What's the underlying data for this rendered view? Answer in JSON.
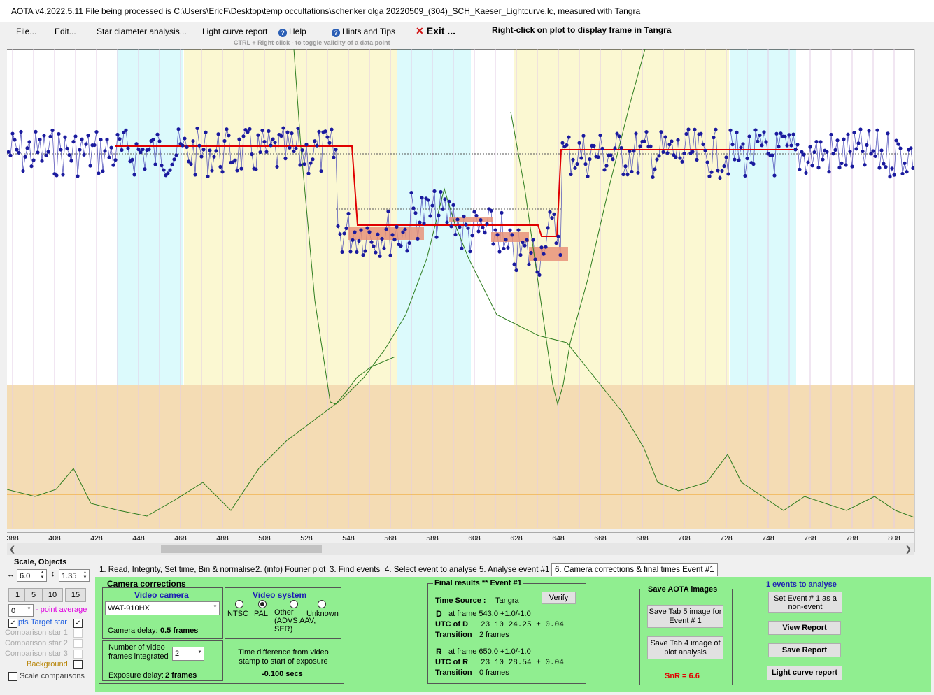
{
  "window": {
    "title": "AOTA v4.2022.5.11    File being processed is C:\\Users\\EricF\\Desktop\\temp occultations\\schenker olga 20220509_(304)_SCH_Kaeser_Lightcurve.lc, measured with Tangra"
  },
  "menu": {
    "file": "File...",
    "edit": "Edit...",
    "star_diameter": "Star diameter analysis...",
    "light_curve_report": "Light curve report",
    "help": "Help",
    "hints": "Hints and Tips",
    "exit": "Exit ...",
    "right_click_hint": "Right-click on plot to display frame in Tangra",
    "ctrl_hint": "CTRL + Right-click  -  to toggle validity of a data point"
  },
  "plot": {
    "x_ticks": [
      "388",
      "408",
      "428",
      "448",
      "468",
      "488",
      "508",
      "528",
      "548",
      "568",
      "588",
      "608",
      "628",
      "648",
      "668",
      "688",
      "708",
      "728",
      "748",
      "768",
      "788",
      "808"
    ],
    "colors": {
      "cyan_band": "#dcfafc",
      "yellow_band": "#fbf8d2",
      "noise_band": "#f4dcb4",
      "data": "#1a1a9e",
      "fit": "#e00000",
      "green_curve": "#2e7d1f"
    }
  },
  "chart_data": {
    "type": "line",
    "xlabel": "",
    "ylabel": "",
    "xlim": [
      386,
      818
    ],
    "x_tick_labels": [
      388,
      408,
      428,
      448,
      468,
      488,
      508,
      528,
      548,
      568,
      588,
      608,
      628,
      648,
      668,
      688,
      708,
      728,
      748,
      768,
      788,
      808
    ],
    "events": {
      "D_frame": 543.0,
      "R_frame": 650.0
    },
    "baseline_level": "high",
    "event_level": "low"
  },
  "left": {
    "scale_objects": "Scale,  Objects",
    "scale_x": "6.0",
    "scale_y": "1.35",
    "btn1": "1",
    "btn5": "5",
    "btn10": "10",
    "btn15": "15",
    "point_avg_value": "0",
    "point_average": "- point average",
    "pts": "pts",
    "target_star": "Target star",
    "comp1": "Comparison star 1",
    "comp2": "Comparison star 2",
    "comp3": "Comparison star 3",
    "background": "Background",
    "scale_comparisons": "Scale comparisons"
  },
  "tabs": [
    "1.  Read, Integrity, Set time, Bin & normalise",
    "2.  (info)  Fourier plot",
    "3. Find events",
    "4. Select event to analyse",
    "5. Analyse event #1",
    "6. Camera corrections & final times Event #1"
  ],
  "camera": {
    "title": "Camera corrections",
    "video_camera": "Video camera",
    "camera_model": "WAT-910HX",
    "camera_delay_label": "Camera delay:",
    "camera_delay_value": "0.5 frames",
    "video_system": "Video system",
    "ntsc": "NTSC",
    "pal": "PAL",
    "other": "Other (ADVS AAV, SER)",
    "unknown": "Unknown",
    "frames_integrated_label": "Number of video frames integrated",
    "frames_integrated_value": "2",
    "exposure_delay_label": "Exposure delay:",
    "exposure_delay_value": "2 frames",
    "time_diff_label": "Time difference from video stamp to start of exposure",
    "time_diff_value": "-0.100 secs"
  },
  "results": {
    "title": "Final results  **  Event #1",
    "time_source_label": "Time Source :",
    "time_source_value": "Tangra",
    "verify": "Verify",
    "d_label": "D",
    "d_frame": "at frame 543.0  +1.0/-1.0",
    "utc_d_label": "UTC of D",
    "utc_d_value": "23 10 24.25  ± 0.04",
    "transition_label": "Transition",
    "transition_d": "2 frames",
    "r_label": "R",
    "r_frame": "at frame 650.0  +1.0/-1.0",
    "utc_r_label": "UTC of R",
    "utc_r_value": "23 10 28.54  ± 0.04",
    "transition_r": "0 frames"
  },
  "save": {
    "title": "Save AOTA images",
    "tab5": "Save Tab 5 image for Event # 1",
    "tab4": "Save Tab 4 image of plot analysis",
    "snr": "SnR = 6.6"
  },
  "events_box": {
    "title": "1  events to analyse",
    "set_event": "Set Event # 1 as a non-event",
    "view_report": "View Report",
    "save_report": "Save Report",
    "lc_report": "Light curve report"
  }
}
